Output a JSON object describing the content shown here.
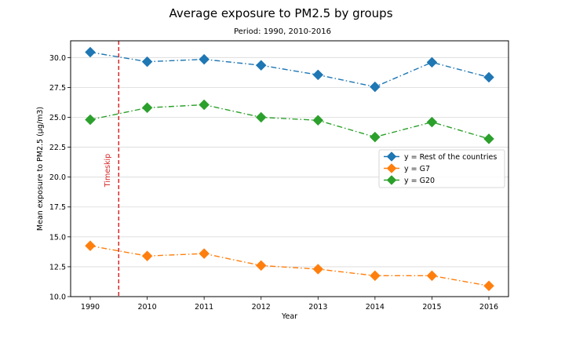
{
  "chart_data": {
    "type": "line",
    "title": "Average exposure to PM2.5 by groups",
    "subtitle": "Period: 1990, 2010-2016",
    "xlabel": "Year",
    "ylabel": "Mean exposure to PM2.5 (µg/m3)",
    "categories": [
      "1990",
      "2010",
      "2011",
      "2012",
      "2013",
      "2014",
      "2015",
      "2016"
    ],
    "ylim": [
      10.0,
      31.4
    ],
    "yticks": [
      "10.0",
      "12.5",
      "15.0",
      "17.5",
      "20.0",
      "22.5",
      "25.0",
      "27.5",
      "30.0"
    ],
    "grid": "horizontal",
    "legend_position": "center-right",
    "series": [
      {
        "name": "y = Rest of the countries",
        "color": "#1f77b4",
        "marker": "diamond",
        "linestyle": "dash-dot",
        "values": [
          30.45,
          29.65,
          29.85,
          29.35,
          28.55,
          27.55,
          29.6,
          28.35
        ]
      },
      {
        "name": "y = G7",
        "color": "#ff7f0e",
        "marker": "diamond",
        "linestyle": "dash-dot",
        "values": [
          14.25,
          13.4,
          13.6,
          12.6,
          12.3,
          11.75,
          11.75,
          10.9
        ]
      },
      {
        "name": "y = G20",
        "color": "#2ca02c",
        "marker": "diamond",
        "linestyle": "dash-dot",
        "values": [
          24.8,
          25.8,
          26.05,
          25.0,
          24.75,
          23.35,
          24.6,
          23.2
        ]
      }
    ],
    "annotation": {
      "text": "Timeskip",
      "color": "#d62728",
      "x_between": [
        "1990",
        "2010"
      ],
      "x_fraction": 0.5
    }
  }
}
